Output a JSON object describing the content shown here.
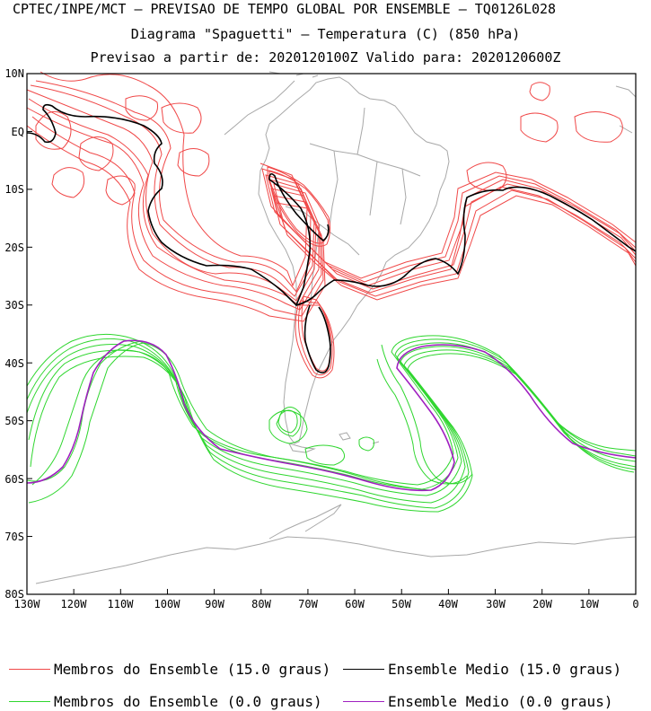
{
  "title": {
    "line1": "CPTEC/INPE/MCT — PREVISAO DE TEMPO GLOBAL POR ENSEMBLE — TQ0126L028",
    "line2": "Diagrama \"Spaguetti\" — Temperatura (C) (850 hPa)",
    "line3": "Previsao a partir de: 2020120100Z  Valido para: 2020120600Z"
  },
  "axes": {
    "y_ticks": [
      "10N",
      "EQ",
      "10S",
      "20S",
      "30S",
      "40S",
      "50S",
      "60S",
      "70S",
      "80S"
    ],
    "x_ticks": [
      "130W",
      "120W",
      "110W",
      "100W",
      "90W",
      "80W",
      "70W",
      "60W",
      "50W",
      "40W",
      "30W",
      "20W",
      "10W",
      "0"
    ]
  },
  "legend": [
    {
      "label": "Membros do Ensemble (15.0 graus)",
      "color": "#f04848"
    },
    {
      "label": "Ensemble Medio (15.0 graus)",
      "color": "#000000"
    },
    {
      "label": "Membros do Ensemble (0.0 graus)",
      "color": "#2ed62e"
    },
    {
      "label": "Ensemble Medio (0.0 graus)",
      "color": "#a020c0"
    }
  ],
  "colors": {
    "coast": "#a8a8a8",
    "red_members": "#f04848",
    "green_members": "#2ed62e",
    "mean_15": "#000000",
    "mean_0": "#a020c0"
  }
}
